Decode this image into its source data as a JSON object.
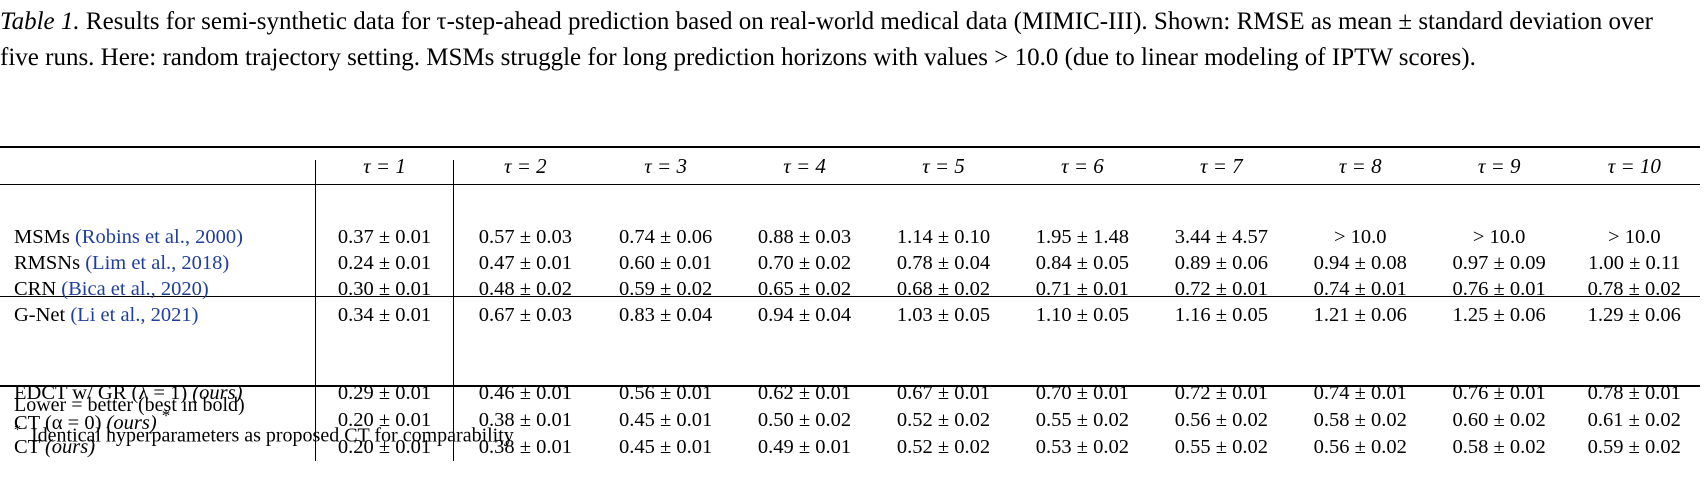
{
  "caption": {
    "label": "Table 1.",
    "text": "Results for semi-synthetic data for τ-step-ahead prediction based on real-world medical data (MIMIC-III). Shown: RMSE as mean ± standard deviation over five runs. Here: random trajectory setting. MSMs struggle for long prediction horizons with values > 10.0 (due to linear modeling of IPTW scores)."
  },
  "columns": [
    "τ = 1",
    "τ = 2",
    "τ = 3",
    "τ = 4",
    "τ = 5",
    "τ = 6",
    "τ = 7",
    "τ = 8",
    "τ = 9",
    "τ = 10"
  ],
  "group1": [
    {
      "name": "MSMs",
      "cite": "(Robins et al., 2000)",
      "cells": [
        "0.37 ± 0.01",
        "0.57 ± 0.03",
        "0.74 ± 0.06",
        "0.88 ± 0.03",
        "1.14 ± 0.10",
        "1.95 ± 1.48",
        "3.44 ± 4.57",
        "> 10.0",
        "> 10.0",
        "> 10.0"
      ]
    },
    {
      "name": "RMSNs",
      "cite": "(Lim et al., 2018)",
      "cells": [
        "0.24 ± 0.01",
        "0.47 ± 0.01",
        "0.60 ± 0.01",
        "0.70 ± 0.02",
        "0.78 ± 0.04",
        "0.84 ± 0.05",
        "0.89 ± 0.06",
        "0.94 ± 0.08",
        "0.97 ± 0.09",
        "1.00 ± 0.11"
      ]
    },
    {
      "name": "CRN",
      "cite": "(Bica et al., 2020)",
      "cells": [
        "0.30 ± 0.01",
        "0.48 ± 0.02",
        "0.59 ± 0.02",
        "0.65 ± 0.02",
        "0.68 ± 0.02",
        "0.71 ± 0.01",
        "0.72 ± 0.01",
        "0.74 ± 0.01",
        "0.76 ± 0.01",
        "0.78 ± 0.02"
      ]
    },
    {
      "name": "G-Net",
      "cite": "(Li et al., 2021)",
      "cells": [
        "0.34 ± 0.01",
        "0.67 ± 0.03",
        "0.83 ± 0.04",
        "0.94 ± 0.04",
        "1.03 ± 0.05",
        "1.10 ± 0.05",
        "1.16 ± 0.05",
        "1.21 ± 0.06",
        "1.25 ± 0.06",
        "1.29 ± 0.06"
      ]
    }
  ],
  "group2": [
    {
      "name": "EDCT w/ GR (λ = 1)",
      "tag": "(ours)",
      "mark": "",
      "cells": [
        "0.29 ± 0.01",
        "0.46 ± 0.01",
        "0.56 ± 0.01",
        "0.62 ± 0.01",
        "0.67 ± 0.01",
        "0.70 ± 0.01",
        "0.72 ± 0.01",
        "0.74 ± 0.01",
        "0.76 ± 0.01",
        "0.78 ± 0.01"
      ]
    },
    {
      "name": "CT (α = 0)",
      "tag": "(ours)",
      "mark": "*",
      "cells": [
        "0.20 ± 0.01",
        "0.38 ± 0.01",
        "0.45 ± 0.01",
        "0.50 ± 0.02",
        "0.52 ± 0.02",
        "0.55 ± 0.02",
        "0.56 ± 0.02",
        "0.58 ± 0.02",
        "0.60 ± 0.02",
        "0.61 ± 0.02"
      ]
    },
    {
      "name": "CT",
      "tag": "(ours)",
      "mark": "",
      "cells": [
        "0.20 ± 0.01",
        "0.38 ± 0.01",
        "0.45 ± 0.01",
        "0.49 ± 0.01",
        "0.52 ± 0.02",
        "0.53 ± 0.02",
        "0.55 ± 0.02",
        "0.56 ± 0.02",
        "0.58 ± 0.02",
        "0.59 ± 0.02"
      ]
    }
  ],
  "notes": {
    "lower_better": "Lower = better (best in bold)",
    "footnote_mark": "*",
    "footnote": "Identical hyperparameters as proposed CT for comparability"
  }
}
